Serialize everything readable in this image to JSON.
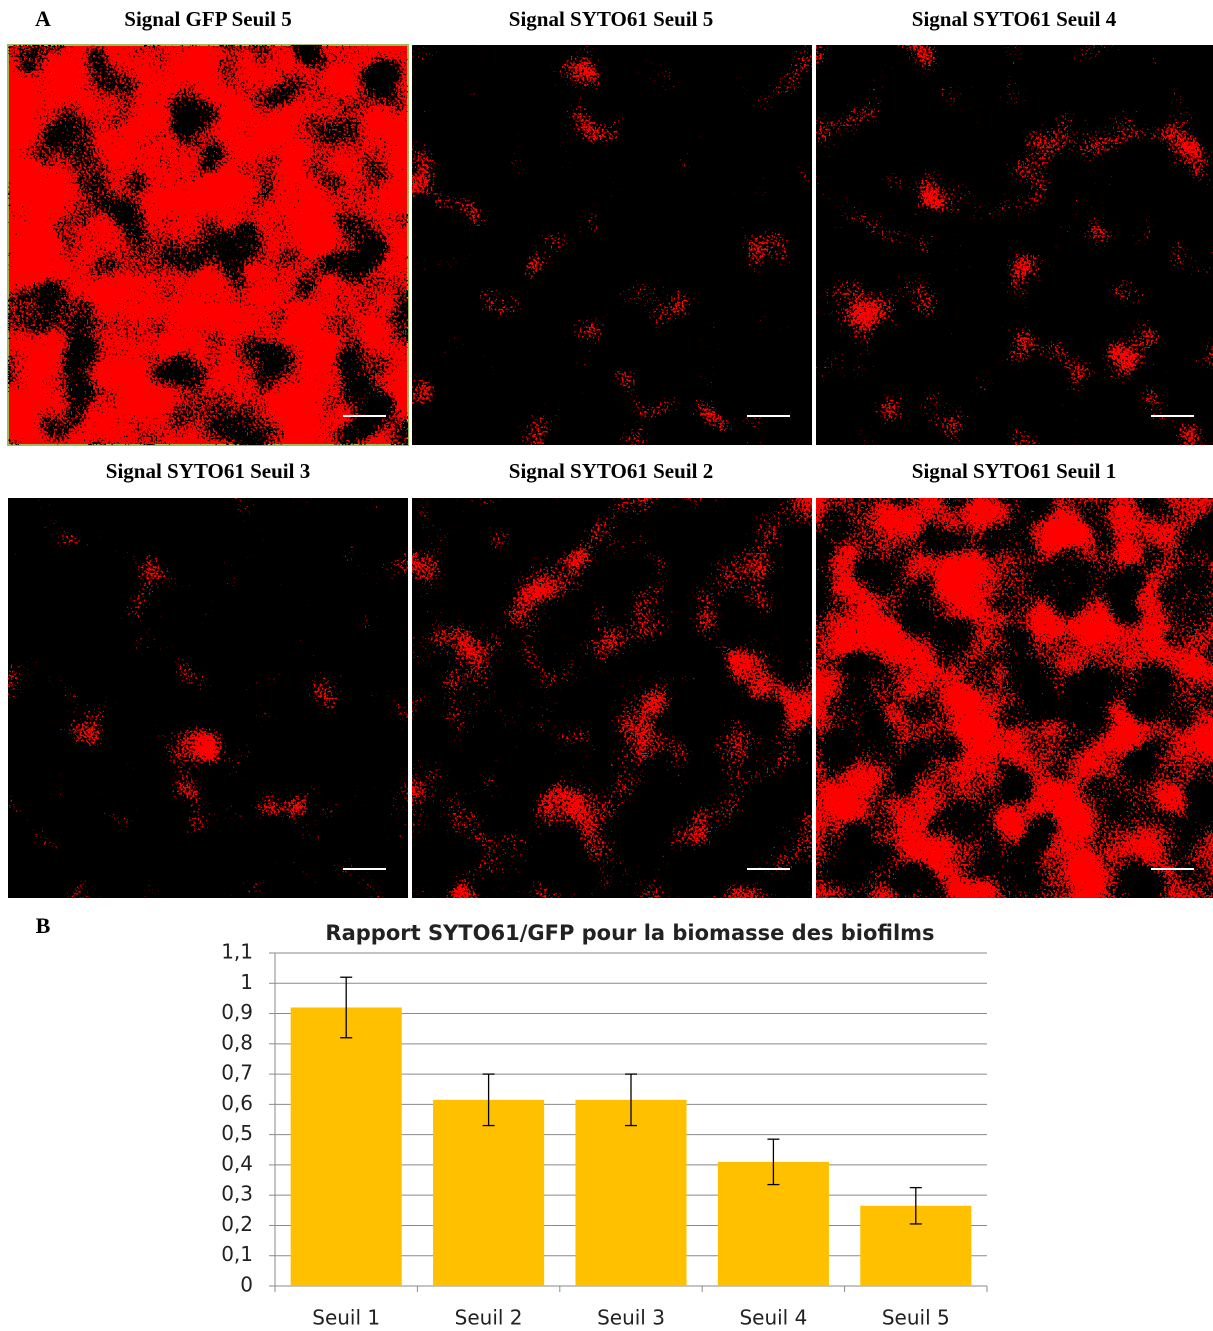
{
  "panel_a": {
    "label": "A",
    "images": [
      {
        "title": "Signal GFP Seuil 5"
      },
      {
        "title": "Signal SYTO61 Seuil 5"
      },
      {
        "title": "Signal SYTO61 Seuil 4"
      },
      {
        "title": "Signal SYTO61 Seuil 3"
      },
      {
        "title": "Signal SYTO61 Seuil 2"
      },
      {
        "title": "Signal SYTO61 Seuil 1"
      }
    ]
  },
  "panel_b": {
    "label": "B"
  },
  "chart_data": {
    "type": "bar",
    "title": "Rapport SYTO61/GFP pour la biomasse des biofilms",
    "categories": [
      "Seuil 1",
      "Seuil 2",
      "Seuil 3",
      "Seuil 4",
      "Seuil 5"
    ],
    "values": [
      0.92,
      0.615,
      0.615,
      0.41,
      0.265
    ],
    "errors": [
      0.1,
      0.085,
      0.085,
      0.075,
      0.06
    ],
    "color": "#ffc000",
    "ylim": [
      0,
      1.1
    ],
    "yticks": [
      0,
      {
        "value": 0.1,
        "label": "0,1"
      },
      {
        "value": 0.2,
        "label": "0,2"
      },
      {
        "value": 0.3,
        "label": "0,3"
      },
      {
        "value": 0.4,
        "label": "0,4"
      },
      {
        "value": 0.5,
        "label": "0,5"
      },
      {
        "value": 0.6,
        "label": "0,6"
      },
      {
        "value": 0.7,
        "label": "0,7"
      },
      {
        "value": 0.8,
        "label": "0,8"
      },
      {
        "value": 0.9,
        "label": "0,9"
      },
      1,
      {
        "value": 1.1,
        "label": "1,1"
      }
    ],
    "grid": true
  }
}
